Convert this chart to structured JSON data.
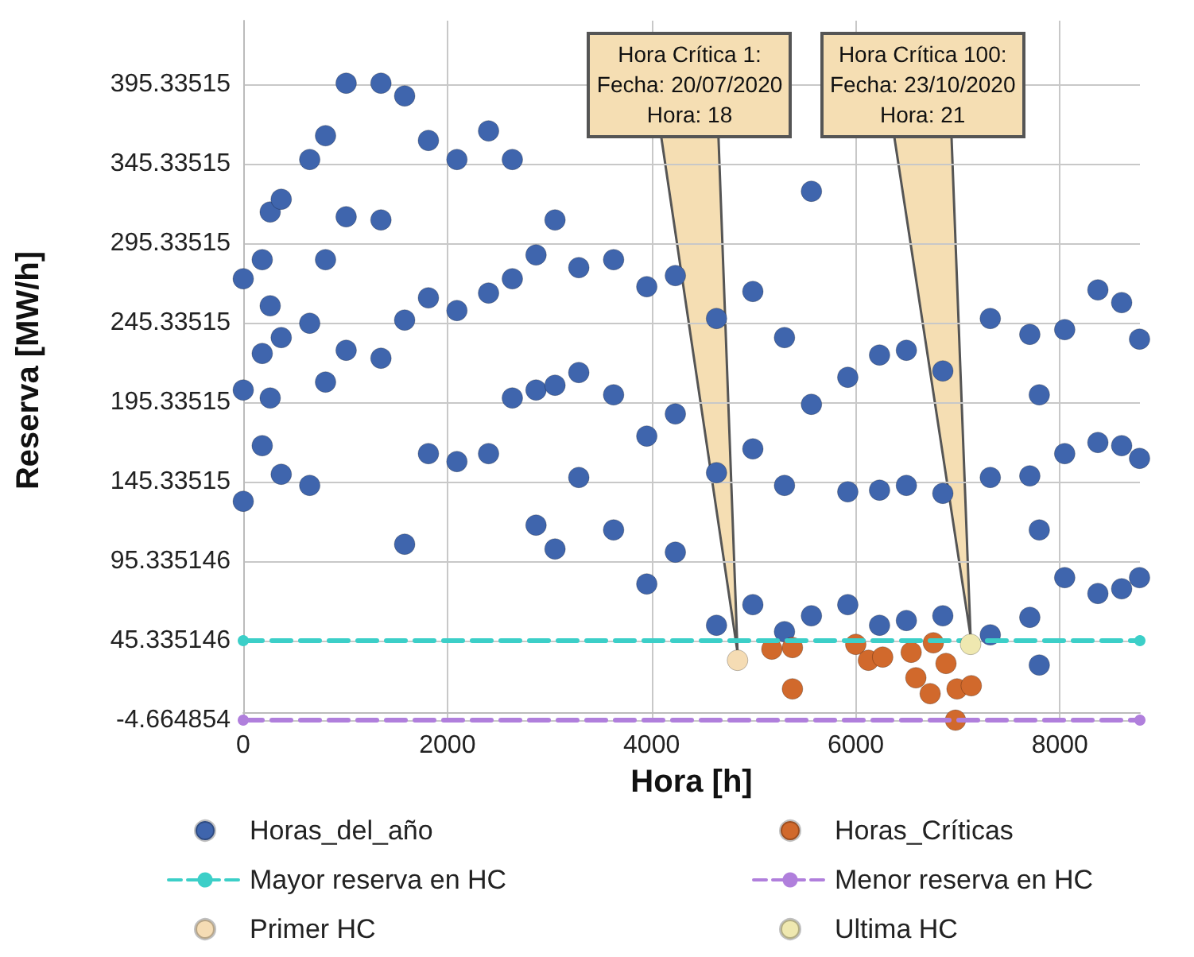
{
  "chart_data": {
    "type": "scatter",
    "xlabel": "Hora [h]",
    "ylabel": "Reserva [MW/h]",
    "xlim": [
      0,
      8784
    ],
    "xticks": [
      0,
      2000,
      4000,
      6000,
      8000
    ],
    "ylim": [
      -4.664854,
      435.33515
    ],
    "yticks": [
      -4.664854,
      45.335146,
      95.335146,
      145.33515,
      195.33515,
      245.33515,
      295.33515,
      345.33515,
      395.33515
    ],
    "grid": true,
    "legend": "bottom",
    "annotations": [
      {
        "text": "Hora Crítica 1:\nFecha: 20/07/2020\nHora: 18",
        "x": 4842,
        "y": 33
      },
      {
        "text": "Hora Crítica 100:\nFecha: 23/10/2020\nHora: 21",
        "x": 7125,
        "y": 43
      }
    ],
    "series": [
      {
        "name": "Horas_del_año",
        "marker": "circle",
        "color": "#3f65ad",
        "x": [
          0,
          0,
          0,
          186,
          186,
          186,
          264,
          264,
          264,
          372,
          372,
          372,
          651,
          651,
          651,
          806,
          806,
          806,
          1008,
          1008,
          1008,
          1349,
          1349,
          1349,
          1581,
          1581,
          1581,
          1814,
          1814,
          1814,
          2093,
          2093,
          2093,
          2403,
          2403,
          2403,
          2636,
          2636,
          2636,
          2868,
          2868,
          2868,
          3054,
          3054,
          3054,
          3287,
          3287,
          3287,
          3628,
          3628,
          3628,
          3953,
          3953,
          3953,
          4233,
          4233,
          4233,
          4636,
          4636,
          4636,
          4992,
          4992,
          4992,
          5302,
          5302,
          5302,
          5566,
          5566,
          5566,
          5922,
          5922,
          5922,
          6233,
          6233,
          6233,
          6496,
          6496,
          6496,
          6853,
          6853,
          6853,
          7318,
          7318,
          7318,
          7705,
          7705,
          7705,
          7798,
          7798,
          7798,
          8047,
          8047,
          8047,
          8372,
          8372,
          8372,
          8605,
          8605,
          8605,
          8780,
          8780,
          8780
        ],
        "values": [
          273,
          203,
          133,
          285,
          226,
          168,
          315,
          256,
          198,
          323,
          236,
          150,
          348,
          245,
          143,
          363,
          285,
          208,
          396,
          312,
          228,
          396,
          310,
          223,
          388,
          247,
          106,
          360,
          261,
          163,
          348,
          253,
          158,
          366,
          264,
          163,
          348,
          273,
          198,
          288,
          203,
          118,
          310,
          206,
          103,
          280,
          214,
          148,
          285,
          200,
          115,
          268,
          174,
          81,
          275,
          188,
          101,
          248,
          151,
          55,
          265,
          166,
          68,
          236,
          143,
          51,
          328,
          194,
          61,
          211,
          139,
          68,
          225,
          140,
          55,
          228,
          143,
          58,
          215,
          138,
          61,
          248,
          148,
          49,
          238,
          149,
          60,
          200,
          115,
          30,
          241,
          163,
          85,
          266,
          170,
          75,
          258,
          168,
          78,
          235,
          160,
          85
        ]
      },
      {
        "name": "Horas_Críticas",
        "marker": "circle",
        "color": "#d1692c",
        "x": [
          5178,
          5380,
          5380,
          6000,
          6124,
          6264,
          6543,
          6589,
          6729,
          6760,
          6884,
          6977,
          6992,
          7132
        ],
        "values": [
          40,
          15,
          41,
          43,
          33,
          35,
          38,
          22,
          12,
          44,
          31,
          -4.664854,
          15,
          17
        ]
      },
      {
        "name": "Mayor reserva en HC",
        "type": "line",
        "marker": "circle",
        "line_style": "dashed",
        "color": "#3ccfc8",
        "x": [
          0,
          8784
        ],
        "values": [
          45.335146,
          45.335146
        ]
      },
      {
        "name": "Menor reserva en HC",
        "type": "line",
        "marker": "circle",
        "line_style": "dashed",
        "color": "#b07fdc",
        "x": [
          0,
          8784
        ],
        "values": [
          -4.664854,
          -4.664854
        ]
      },
      {
        "name": "Primer HC",
        "marker": "circle",
        "color": "#f5dcb4",
        "x": [
          4842
        ],
        "values": [
          33
        ]
      },
      {
        "name": "Ultima HC",
        "marker": "circle",
        "color": "#efe8b0",
        "x": [
          7125
        ],
        "values": [
          43
        ]
      }
    ]
  }
}
